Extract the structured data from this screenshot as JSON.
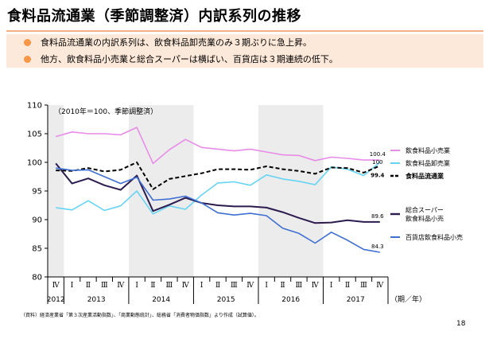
{
  "title": "食料品流通業（季節調整済）内訳系列の推移",
  "bullets": [
    "食料品流通業の内訳系列は、飲食料品卸売業のみ３期ぶりに急上昇。",
    "他方、飲食料品小売業と総合スーパーは横ばい、百貨店は３期連続の低下。"
  ],
  "chart_data": {
    "type": "line",
    "annotation": "（2010年＝100、季節調整済）",
    "x_unit_label": "（期／年）",
    "ylim": [
      80,
      110
    ],
    "yticks": [
      80,
      85,
      90,
      95,
      100,
      105,
      110
    ],
    "grid": false,
    "quarters": [
      "Ⅳ",
      "Ⅰ",
      "Ⅱ",
      "Ⅲ",
      "Ⅳ",
      "Ⅰ",
      "Ⅱ",
      "Ⅲ",
      "Ⅳ",
      "Ⅰ",
      "Ⅱ",
      "Ⅲ",
      "Ⅳ",
      "Ⅰ",
      "Ⅱ",
      "Ⅲ",
      "Ⅳ",
      "Ⅰ",
      "Ⅱ",
      "Ⅲ",
      "Ⅳ"
    ],
    "years": [
      {
        "label": "2012",
        "start": 0,
        "end": 0,
        "shaded": true
      },
      {
        "label": "2013",
        "start": 1,
        "end": 4,
        "shaded": false
      },
      {
        "label": "2014",
        "start": 5,
        "end": 8,
        "shaded": true
      },
      {
        "label": "2015",
        "start": 9,
        "end": 12,
        "shaded": false
      },
      {
        "label": "2016",
        "start": 13,
        "end": 16,
        "shaded": true
      },
      {
        "label": "2017",
        "start": 17,
        "end": 20,
        "shaded": false
      }
    ],
    "series": [
      {
        "name": "飲食料品小売業",
        "color": "#e88ce8",
        "dashed": false,
        "width": 1.6,
        "label_bold": false,
        "values": [
          104.5,
          105.3,
          105.0,
          105.0,
          104.8,
          106.1,
          99.8,
          102.2,
          104.0,
          102.6,
          102.3,
          102.0,
          102.3,
          101.8,
          101.3,
          101.2,
          100.3,
          100.9,
          100.7,
          100.4,
          100.4
        ],
        "end_label": "100.4"
      },
      {
        "name": "飲食料品卸売業",
        "color": "#66d4f4",
        "dashed": false,
        "width": 1.6,
        "label_bold": false,
        "values": [
          92.1,
          91.7,
          93.3,
          91.6,
          92.4,
          95.0,
          91.0,
          92.4,
          91.8,
          94.3,
          96.4,
          96.6,
          96.0,
          97.8,
          97.1,
          96.7,
          96.1,
          99.2,
          98.8,
          97.7,
          100.0
        ],
        "end_label": "100"
      },
      {
        "name": "食料品流通業",
        "color": "#000000",
        "dashed": true,
        "width": 2.0,
        "label_bold": true,
        "values": [
          98.6,
          98.5,
          99.0,
          98.4,
          98.7,
          100.0,
          95.3,
          97.1,
          97.6,
          98.1,
          98.8,
          98.8,
          98.7,
          99.3,
          98.8,
          98.5,
          98.0,
          99.1,
          99.0,
          98.2,
          99.4
        ],
        "end_label": "99.4"
      },
      {
        "name": "総合スーパー\n飲食料品小売",
        "color": "#2b1b4f",
        "dashed": false,
        "width": 2.0,
        "label_bold": false,
        "values": [
          99.8,
          96.3,
          97.2,
          96.0,
          95.2,
          97.7,
          91.5,
          92.6,
          93.8,
          92.9,
          92.5,
          92.3,
          92.3,
          92.1,
          91.3,
          90.3,
          89.4,
          89.5,
          89.9,
          89.6,
          89.6
        ],
        "end_label": "89.6"
      },
      {
        "name": "百貨店飲食料品小売",
        "color": "#3e6fd2",
        "dashed": false,
        "width": 1.6,
        "label_bold": false,
        "values": [
          99.0,
          98.6,
          98.7,
          97.5,
          96.3,
          97.4,
          93.4,
          93.6,
          94.1,
          92.9,
          91.2,
          90.8,
          91.1,
          90.7,
          88.5,
          87.6,
          85.9,
          87.8,
          86.4,
          84.8,
          84.3
        ],
        "end_label": "84.3"
      }
    ]
  },
  "source_note": "（資料）経済産業省「第３次産業活動指数」、「商業動態統計」、総務省「消費者物価指数」より作成（試算値）。",
  "page_number": "18"
}
